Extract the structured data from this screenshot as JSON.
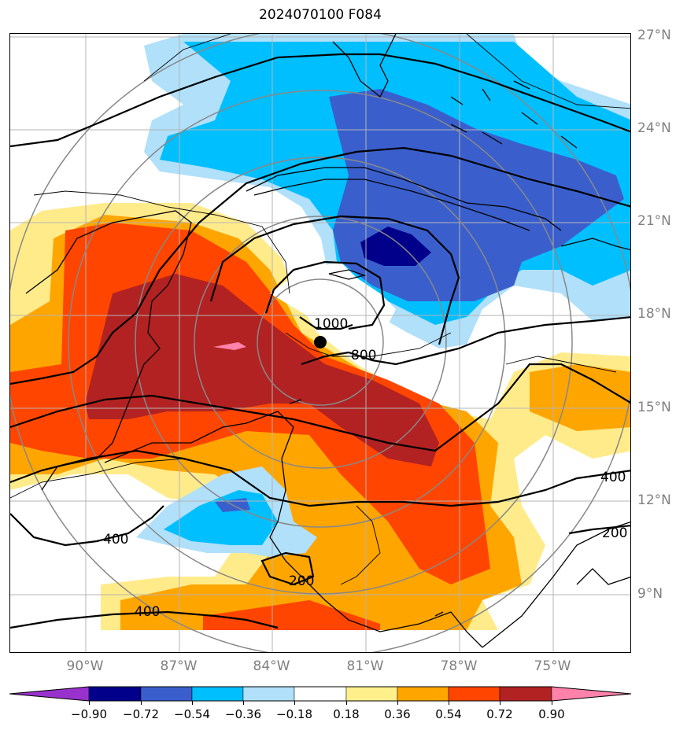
{
  "title": "2024070100 F084",
  "latitude_labels": [
    "27°N",
    "24°N",
    "21°N",
    "18°N",
    "15°N",
    "12°N",
    "9°N"
  ],
  "longitude_labels": [
    "90°W",
    "87°W",
    "84°W",
    "81°W",
    "78°W",
    "75°W"
  ],
  "contour_labels": {
    "c1000": "1000",
    "c800": "800",
    "c400_east": "400",
    "c400_west": "400",
    "c400_south": "400",
    "c200_east": "200",
    "c200_south": "200"
  },
  "colorbar": {
    "ticks": [
      "−0.90",
      "−0.72",
      "−0.54",
      "−0.36",
      "−0.18",
      "0.18",
      "0.36",
      "0.54",
      "0.72",
      "0.90"
    ],
    "colors": [
      "#9932cc",
      "#00008b",
      "#3a5fcd",
      "#00bfff",
      "#b0e0fa",
      "#ffffff",
      "#fff08c",
      "#ffa500",
      "#ff4500",
      "#b22222",
      "#ff82ab"
    ]
  },
  "colors": {
    "dark_red": "#b22222",
    "red_orange": "#ff4500",
    "orange": "#ffa500",
    "light_yellow": "#ffeb8a",
    "light_blue": "#b0e0fa",
    "sky_blue": "#00bfff",
    "royal_blue": "#3a5fcd",
    "navy": "#00008b",
    "pink": "#ff82ab"
  },
  "storm_marker": "black-dot"
}
